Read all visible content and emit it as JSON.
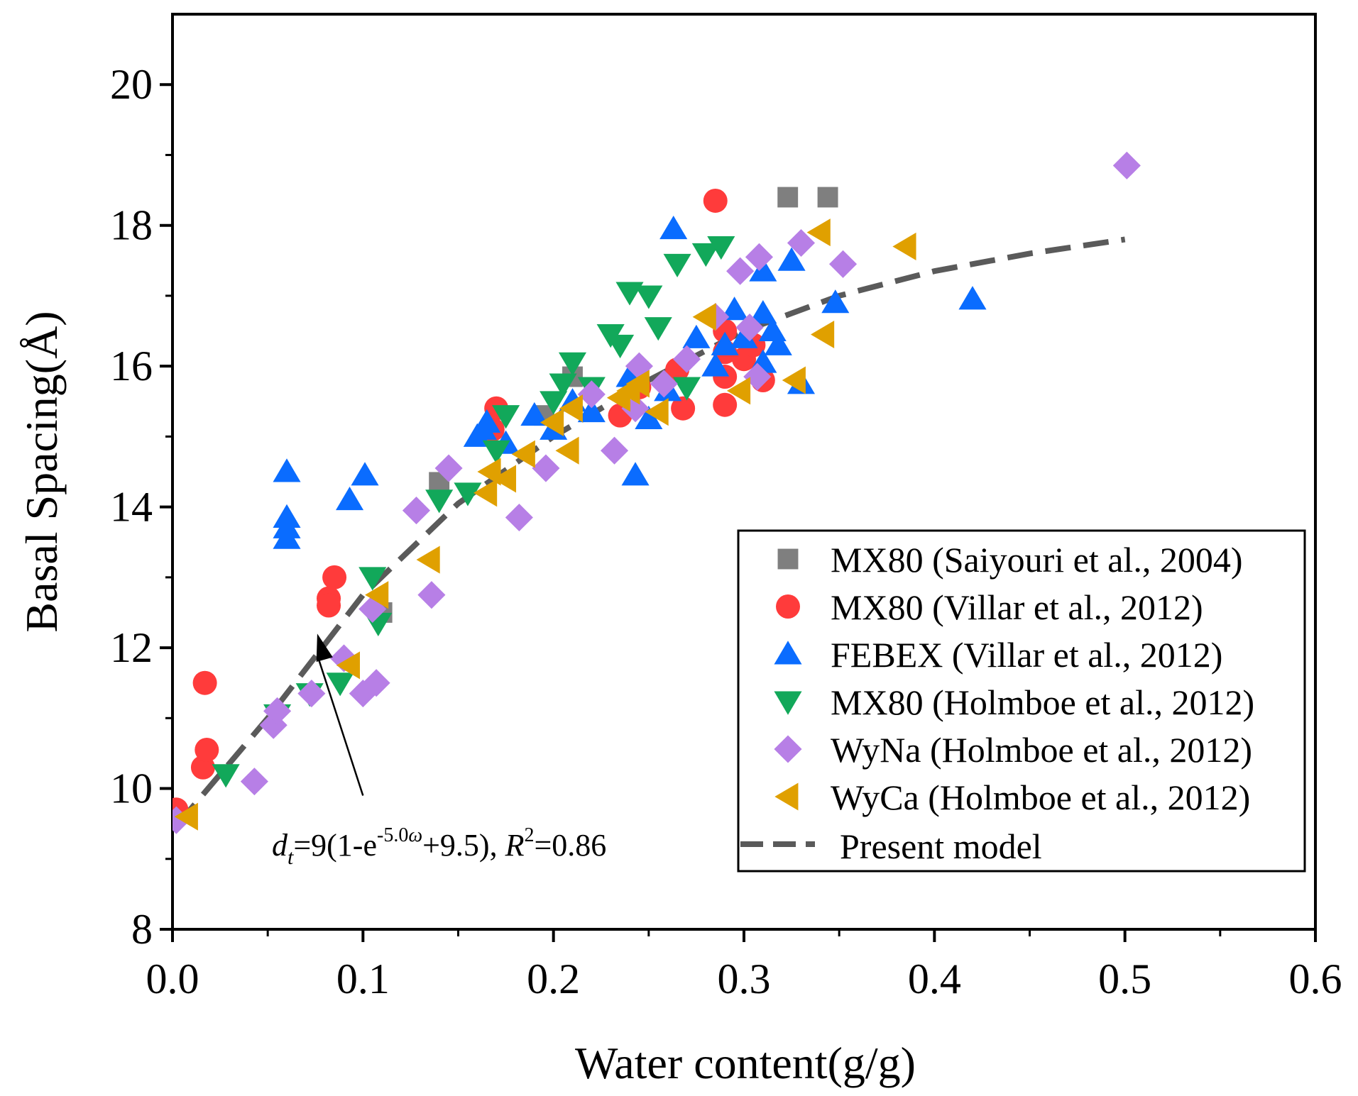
{
  "chart_data": {
    "type": "scatter",
    "xlabel": "Water content(g/g)",
    "ylabel": "Basal Spacing(Å)",
    "xlim": [
      0,
      0.6
    ],
    "ylim": [
      8,
      21
    ],
    "x_ticks": [
      0.0,
      0.1,
      0.2,
      0.3,
      0.4,
      0.5,
      0.6
    ],
    "x_tick_labels": [
      "0.0",
      "0.1",
      "0.2",
      "0.3",
      "0.4",
      "0.5",
      "0.6"
    ],
    "y_ticks": [
      8,
      10,
      12,
      14,
      16,
      18,
      20
    ],
    "y_tick_labels": [
      "8",
      "10",
      "12",
      "14",
      "16",
      "18",
      "20"
    ],
    "grid": false,
    "legend_position": "bottom-right",
    "series": [
      {
        "name": "MX80 (Saiyouri et al., 2004)",
        "marker": "square",
        "color": "#7f7f7f",
        "points": [
          [
            0.14,
            14.35
          ],
          [
            0.21,
            15.85
          ],
          [
            0.195,
            15.3
          ],
          [
            0.11,
            12.5
          ],
          [
            0.323,
            18.4
          ],
          [
            0.344,
            18.4
          ]
        ]
      },
      {
        "name": "MX80 (Villar et al., 2012)",
        "marker": "circle",
        "color": "#ff3b3b",
        "points": [
          [
            0.002,
            9.7
          ],
          [
            0.016,
            10.3
          ],
          [
            0.018,
            10.55
          ],
          [
            0.017,
            11.5
          ],
          [
            0.082,
            12.7
          ],
          [
            0.082,
            12.6
          ],
          [
            0.085,
            13.0
          ],
          [
            0.168,
            15.1
          ],
          [
            0.17,
            15.4
          ],
          [
            0.235,
            15.3
          ],
          [
            0.245,
            15.7
          ],
          [
            0.265,
            15.95
          ],
          [
            0.268,
            15.4
          ],
          [
            0.285,
            18.35
          ],
          [
            0.29,
            16.5
          ],
          [
            0.29,
            15.85
          ],
          [
            0.29,
            16.2
          ],
          [
            0.29,
            15.45
          ],
          [
            0.3,
            16.1
          ],
          [
            0.305,
            16.3
          ],
          [
            0.31,
            15.8
          ]
        ]
      },
      {
        "name": "FEBEX (Villar et al., 2012)",
        "marker": "triangle-up",
        "color": "#0a6cff",
        "points": [
          [
            0.06,
            14.5
          ],
          [
            0.06,
            13.85
          ],
          [
            0.06,
            13.7
          ],
          [
            0.06,
            13.55
          ],
          [
            0.093,
            14.1
          ],
          [
            0.101,
            14.45
          ],
          [
            0.16,
            15.0
          ],
          [
            0.163,
            15.1
          ],
          [
            0.165,
            15.2
          ],
          [
            0.175,
            14.9
          ],
          [
            0.19,
            15.3
          ],
          [
            0.2,
            15.1
          ],
          [
            0.21,
            15.5
          ],
          [
            0.22,
            15.35
          ],
          [
            0.24,
            15.85
          ],
          [
            0.243,
            14.45
          ],
          [
            0.25,
            15.25
          ],
          [
            0.26,
            15.65
          ],
          [
            0.263,
            17.95
          ],
          [
            0.275,
            16.4
          ],
          [
            0.285,
            16.0
          ],
          [
            0.29,
            16.3
          ],
          [
            0.295,
            16.8
          ],
          [
            0.3,
            16.4
          ],
          [
            0.31,
            17.35
          ],
          [
            0.31,
            16.75
          ],
          [
            0.31,
            16.05
          ],
          [
            0.315,
            16.5
          ],
          [
            0.318,
            16.3
          ],
          [
            0.325,
            17.5
          ],
          [
            0.33,
            15.75
          ],
          [
            0.348,
            16.9
          ],
          [
            0.42,
            16.95
          ]
        ]
      },
      {
        "name": "MX80 (Holmboe et al., 2012)",
        "marker": "triangle-down",
        "color": "#12a85a",
        "points": [
          [
            0.028,
            10.2
          ],
          [
            0.055,
            11.05
          ],
          [
            0.072,
            11.35
          ],
          [
            0.088,
            11.5
          ],
          [
            0.105,
            13.0
          ],
          [
            0.108,
            12.35
          ],
          [
            0.14,
            14.1
          ],
          [
            0.155,
            14.2
          ],
          [
            0.17,
            14.8
          ],
          [
            0.175,
            15.3
          ],
          [
            0.2,
            15.5
          ],
          [
            0.205,
            15.75
          ],
          [
            0.21,
            16.05
          ],
          [
            0.22,
            15.7
          ],
          [
            0.23,
            16.45
          ],
          [
            0.235,
            16.3
          ],
          [
            0.24,
            17.05
          ],
          [
            0.25,
            17.0
          ],
          [
            0.255,
            16.55
          ],
          [
            0.265,
            17.45
          ],
          [
            0.27,
            15.7
          ],
          [
            0.28,
            17.6
          ],
          [
            0.288,
            17.7
          ]
        ]
      },
      {
        "name": "WyNa (Holmboe et al., 2012)",
        "marker": "diamond",
        "color": "#b77fe6",
        "points": [
          [
            0.002,
            9.55
          ],
          [
            0.043,
            10.1
          ],
          [
            0.053,
            10.9
          ],
          [
            0.055,
            11.1
          ],
          [
            0.073,
            11.35
          ],
          [
            0.09,
            11.85
          ],
          [
            0.1,
            11.35
          ],
          [
            0.105,
            12.55
          ],
          [
            0.107,
            11.5
          ],
          [
            0.128,
            13.95
          ],
          [
            0.136,
            12.75
          ],
          [
            0.145,
            14.55
          ],
          [
            0.182,
            13.85
          ],
          [
            0.196,
            14.55
          ],
          [
            0.22,
            15.6
          ],
          [
            0.232,
            14.8
          ],
          [
            0.243,
            15.4
          ],
          [
            0.245,
            16.0
          ],
          [
            0.258,
            15.75
          ],
          [
            0.27,
            16.1
          ],
          [
            0.285,
            16.7
          ],
          [
            0.298,
            17.35
          ],
          [
            0.303,
            16.55
          ],
          [
            0.307,
            15.85
          ],
          [
            0.308,
            17.55
          ],
          [
            0.33,
            17.75
          ],
          [
            0.352,
            17.45
          ],
          [
            0.501,
            18.85
          ]
        ]
      },
      {
        "name": "WyCa (Holmboe et al., 2012)",
        "marker": "triangle-left",
        "color": "#e0a000",
        "points": [
          [
            0.008,
            9.6
          ],
          [
            0.093,
            11.75
          ],
          [
            0.108,
            12.75
          ],
          [
            0.135,
            13.25
          ],
          [
            0.165,
            14.2
          ],
          [
            0.167,
            14.5
          ],
          [
            0.175,
            14.4
          ],
          [
            0.185,
            14.75
          ],
          [
            0.2,
            15.2
          ],
          [
            0.208,
            14.8
          ],
          [
            0.21,
            15.4
          ],
          [
            0.235,
            15.55
          ],
          [
            0.24,
            15.65
          ],
          [
            0.245,
            15.75
          ],
          [
            0.255,
            15.35
          ],
          [
            0.28,
            16.7
          ],
          [
            0.298,
            15.65
          ],
          [
            0.327,
            15.8
          ],
          [
            0.34,
            17.9
          ],
          [
            0.342,
            16.45
          ],
          [
            0.385,
            17.7
          ]
        ]
      },
      {
        "name": "Present model",
        "type": "line",
        "style": "dashed",
        "color": "#5a5a5a",
        "points": [
          [
            0.003,
            9.5
          ],
          [
            0.05,
            11.0
          ],
          [
            0.1,
            12.75
          ],
          [
            0.15,
            14.05
          ],
          [
            0.2,
            15.0
          ],
          [
            0.25,
            15.8
          ],
          [
            0.3,
            16.5
          ],
          [
            0.35,
            17.0
          ],
          [
            0.4,
            17.35
          ],
          [
            0.45,
            17.6
          ],
          [
            0.5,
            17.8
          ]
        ]
      }
    ],
    "annotation": {
      "arrow_from": [
        0.1,
        9.9
      ],
      "arrow_to": [
        0.076,
        12.2
      ],
      "label_at": [
        0.05,
        9.35
      ]
    }
  },
  "annotation_text": {
    "d": "d",
    "sub_t": "t",
    "eq_prefix": "=9(1-e",
    "exponent": "-5.0",
    "omega": "ω",
    "eq_mid": "+9.5), ",
    "r": "R",
    "sup_2": "2",
    "eq_end": "=0.86"
  }
}
